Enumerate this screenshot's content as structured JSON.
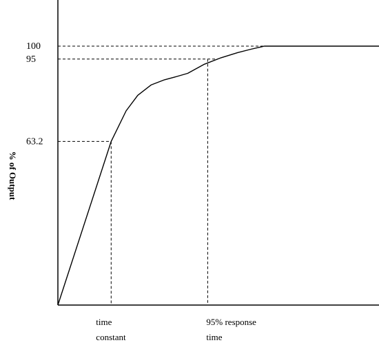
{
  "chart_data": {
    "type": "line",
    "title": "",
    "xlabel": "",
    "ylabel": "% of Output",
    "ylim": [
      0,
      100
    ],
    "xlim": [
      0,
      100
    ],
    "grid": false,
    "legend": "none",
    "series": [
      {
        "x": [
          0,
          16,
          20.5,
          24,
          28,
          32,
          35,
          39,
          44,
          49,
          54,
          58,
          62,
          100
        ],
        "y": [
          0,
          63.2,
          75,
          81,
          85,
          87,
          88,
          89.5,
          93,
          95.5,
          97.5,
          98.8,
          100,
          100
        ]
      }
    ],
    "y_ticks": [
      {
        "value": 100,
        "label": "100"
      },
      {
        "value": 95,
        "label": "95"
      },
      {
        "value": 63.2,
        "label": "63.2"
      }
    ],
    "x_annotations": [
      {
        "x": 16,
        "y": 63.2,
        "label_lines": [
          "time",
          "constant"
        ]
      },
      {
        "x": 45,
        "y": 95,
        "label_lines": [
          "95% response",
          "time"
        ]
      }
    ],
    "colors": {
      "line": "#000000",
      "axis": "#000000",
      "guide": "#000000"
    }
  }
}
